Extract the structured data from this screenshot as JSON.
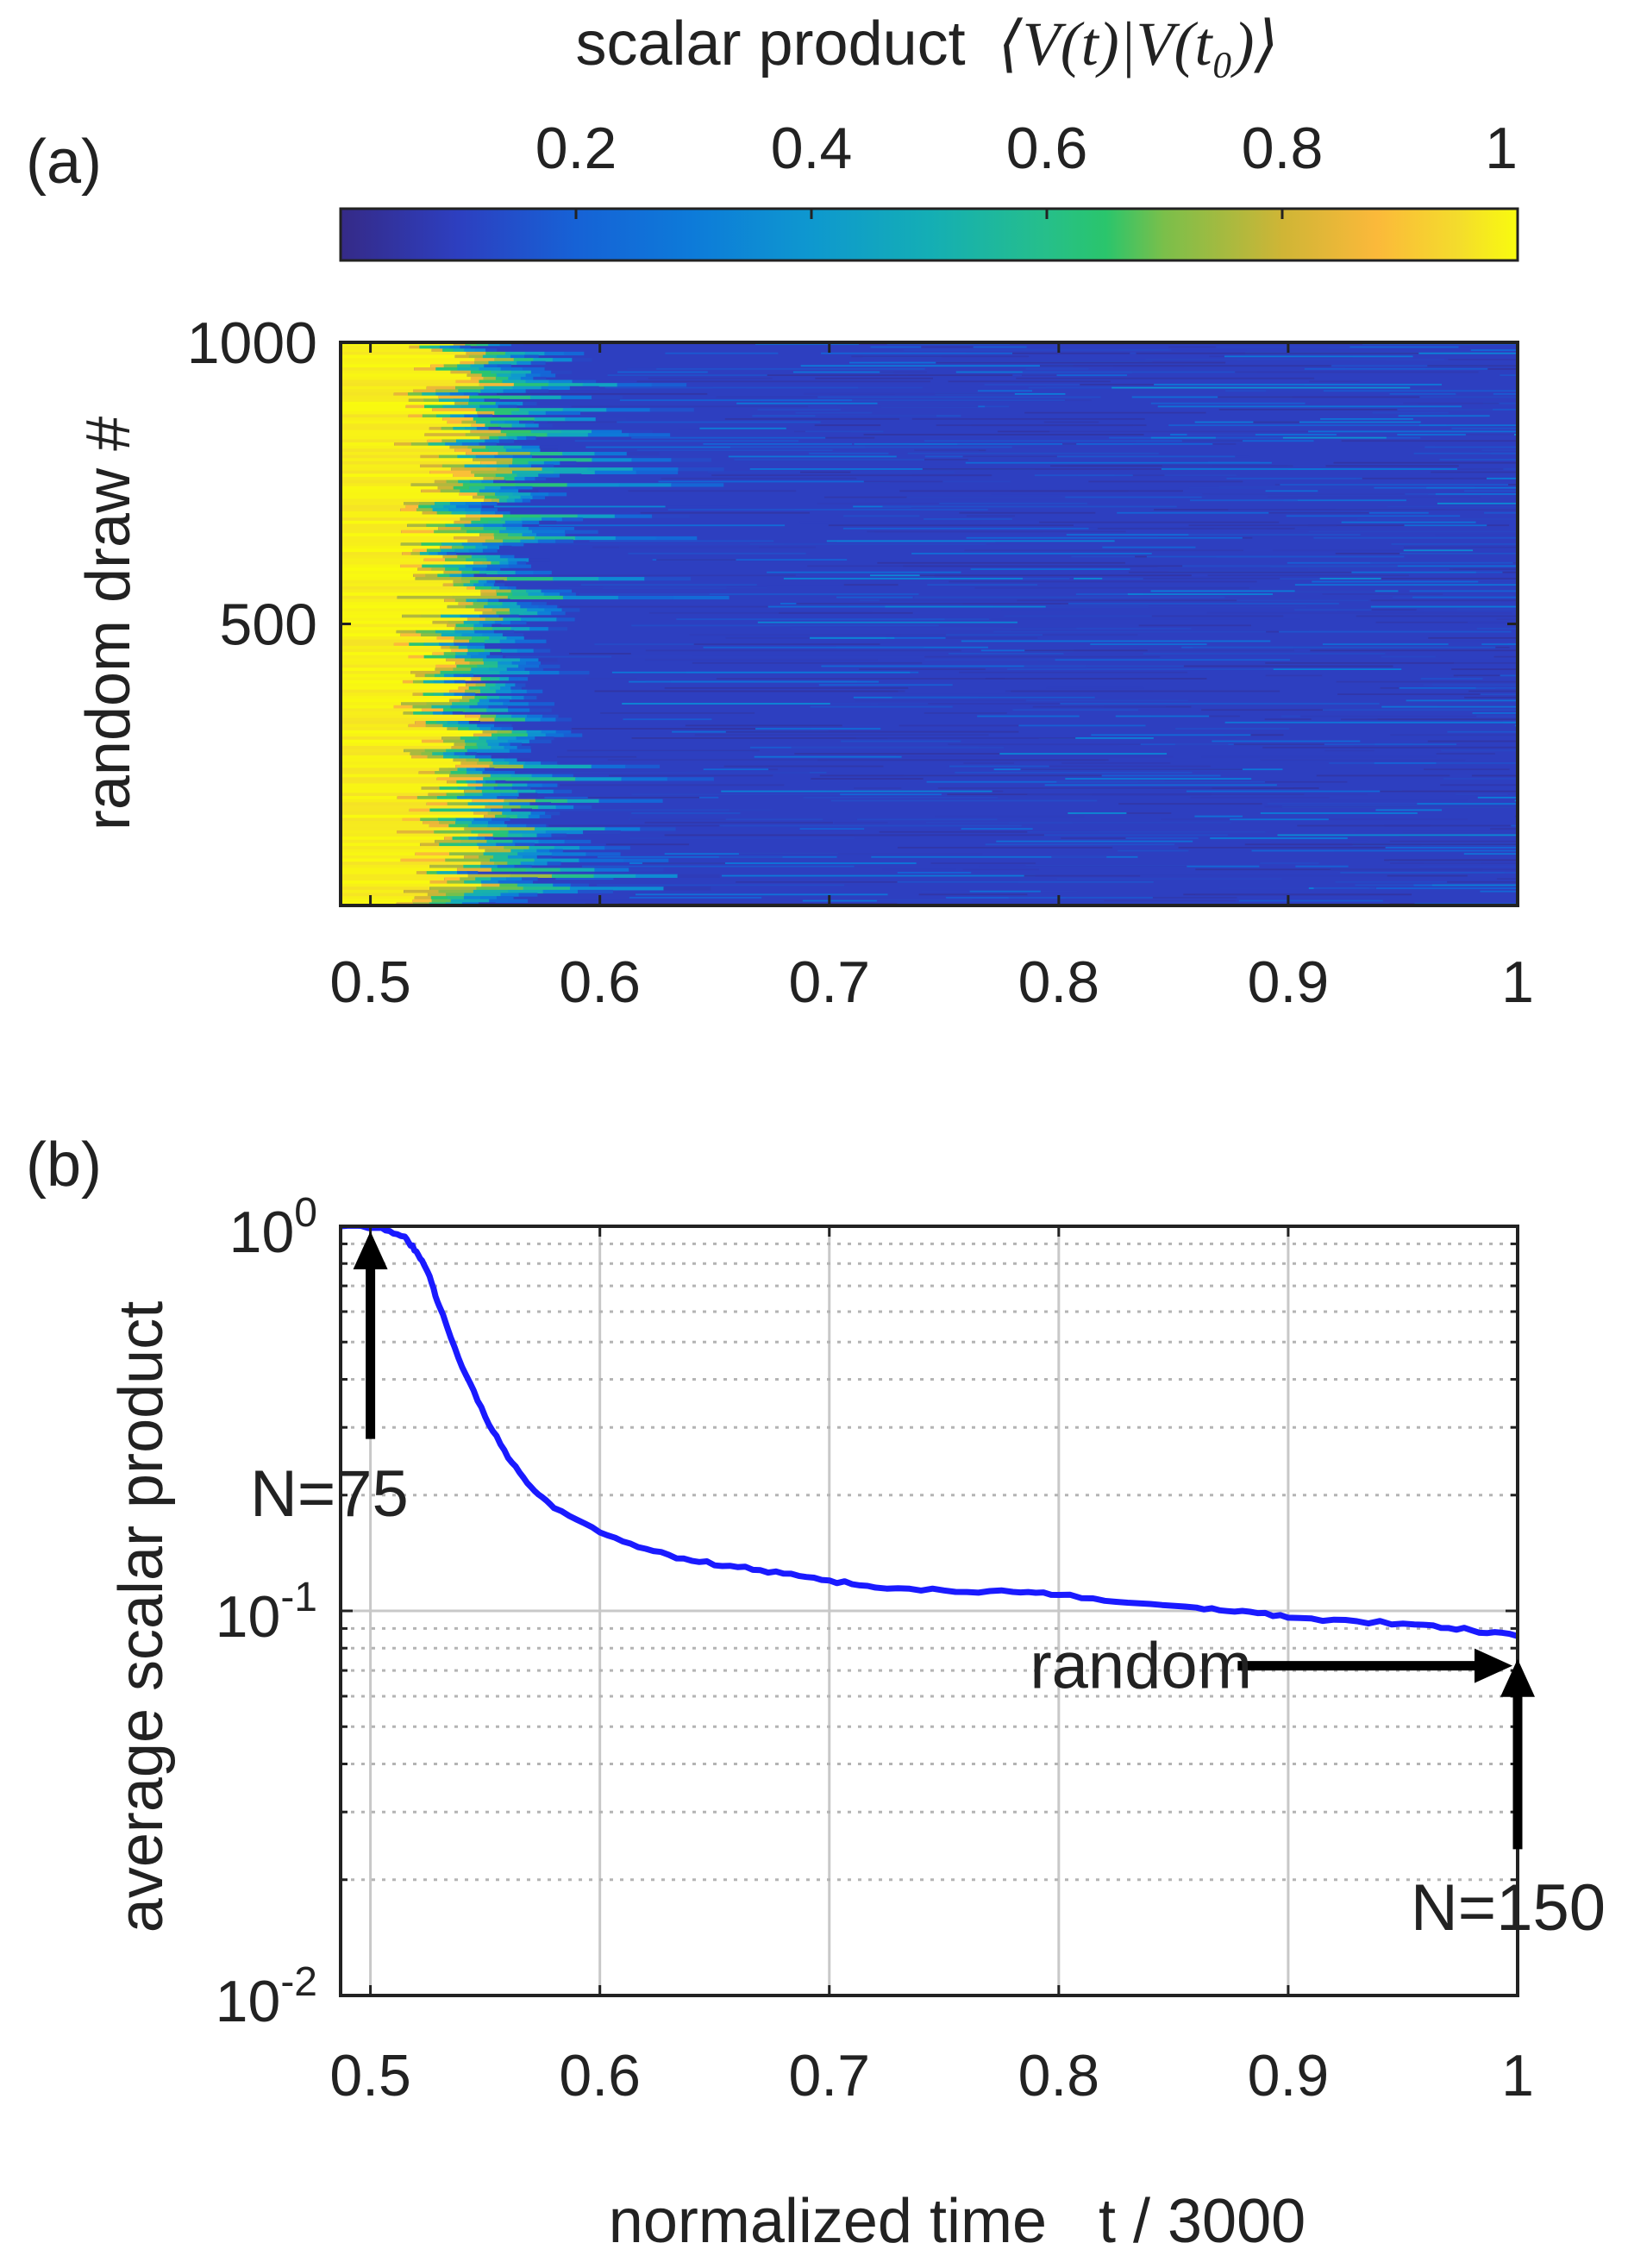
{
  "colorbar": {
    "label_prefix": "scalar product",
    "label_math": "⟨V(t)|V(t₀)⟩",
    "ticks": [
      "0.2",
      "0.4",
      "0.6",
      "0.8",
      "1"
    ],
    "range": [
      0,
      1
    ]
  },
  "chart_data": [
    {
      "panel": "(a)",
      "type": "heatmap",
      "title": "",
      "xlabel": "",
      "ylabel": "random draw #",
      "xlim": [
        0.487,
        1.0
      ],
      "ylim": [
        0,
        1000
      ],
      "xticks": [
        0.5,
        0.6,
        0.7,
        0.8,
        0.9,
        1
      ],
      "xtick_labels": [
        "0.5",
        "0.6",
        "0.7",
        "0.8",
        "0.9",
        "1"
      ],
      "yticks": [
        500,
        1000
      ],
      "ytick_labels": [
        "500",
        "1000"
      ],
      "colormap": "parula",
      "n_rows": 1000,
      "description_values": {
        "high_region_end_x": 0.52,
        "transition_end_x": 0.62,
        "background_value": 0.1
      }
    },
    {
      "panel": "(b)",
      "type": "line",
      "title": "",
      "xlabel": "normalized time   t / 3000",
      "ylabel": "average scalar product",
      "xlim": [
        0.487,
        1.0
      ],
      "ylim": [
        0.01,
        1.0
      ],
      "yscale": "log",
      "grid": true,
      "xticks": [
        0.5,
        0.6,
        0.7,
        0.8,
        0.9,
        1
      ],
      "xtick_labels": [
        "0.5",
        "0.6",
        "0.7",
        "0.8",
        "0.9",
        "1"
      ],
      "yticks": [
        1,
        0.1,
        0.01
      ],
      "ytick_labels": [
        {
          "base": "10",
          "exp": "0"
        },
        {
          "base": "10",
          "exp": "-1"
        },
        {
          "base": "10",
          "exp": "-2"
        }
      ],
      "series": [
        {
          "name": "average scalar product",
          "color": "#1a1aff",
          "x": [
            0.487,
            0.505,
            0.515,
            0.52,
            0.525,
            0.53,
            0.54,
            0.55,
            0.56,
            0.57,
            0.58,
            0.6,
            0.62,
            0.64,
            0.66,
            0.68,
            0.7,
            0.72,
            0.75,
            0.78,
            0.8,
            0.83,
            0.86,
            0.88,
            0.9,
            0.93,
            0.96,
            0.98,
            1.0
          ],
          "y": [
            1.0,
            0.99,
            0.94,
            0.86,
            0.76,
            0.62,
            0.43,
            0.32,
            0.25,
            0.21,
            0.185,
            0.16,
            0.145,
            0.135,
            0.13,
            0.125,
            0.12,
            0.115,
            0.113,
            0.112,
            0.11,
            0.105,
            0.102,
            0.1,
            0.096,
            0.094,
            0.092,
            0.089,
            0.086
          ]
        }
      ],
      "annotations": [
        {
          "label": "N=75",
          "x": 0.5,
          "y_from": 0.28,
          "y_to": 0.97,
          "direction": "up"
        },
        {
          "label": "random",
          "x_from": 0.878,
          "x_to": 1.0,
          "y": 0.072,
          "direction": "right"
        },
        {
          "label": "N=150",
          "x": 1.0,
          "y_from": 0.024,
          "y_to": 0.075,
          "direction": "up"
        }
      ]
    }
  ]
}
